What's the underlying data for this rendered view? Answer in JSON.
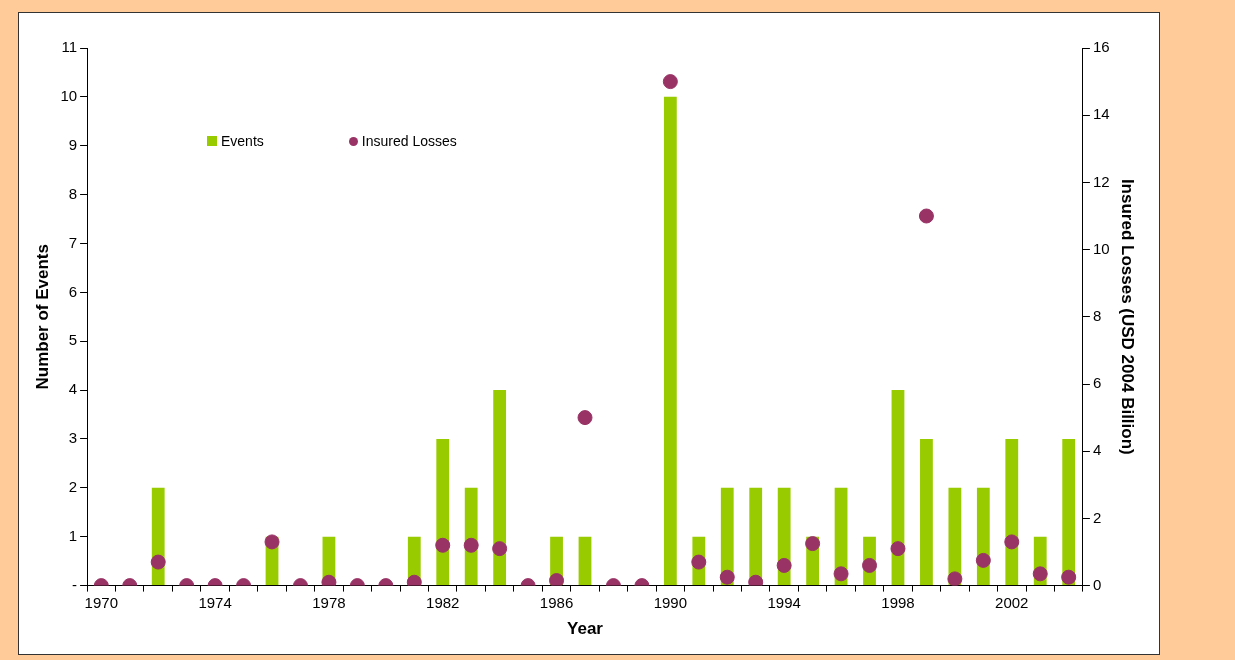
{
  "chart_data": {
    "type": "bar",
    "xlabel": "Year",
    "ylabel": "Number of Events",
    "y2label": "Insured Losses (USD 2004 Billion)",
    "categories": [
      "1970",
      null,
      null,
      null,
      "1974",
      null,
      null,
      null,
      "1978",
      null,
      null,
      null,
      "1982",
      null,
      null,
      null,
      "1986",
      null,
      null,
      null,
      "1990",
      null,
      null,
      null,
      "1994",
      null,
      null,
      null,
      "1998",
      null,
      null,
      null,
      "2002",
      null,
      null
    ],
    "series": [
      {
        "name": "Events",
        "color": "#99cc00",
        "values": [
          0,
          0,
          2,
          0,
          0,
          0,
          1,
          0,
          1,
          0,
          0,
          1,
          3,
          2,
          4,
          0,
          1,
          1,
          0,
          0,
          10,
          1,
          2,
          2,
          2,
          1,
          2,
          1,
          4,
          3,
          2,
          2,
          3,
          1,
          3
        ]
      },
      {
        "name": "Insured Losses",
        "type": "scatter",
        "axis": "y2",
        "color": "#993366",
        "marker": "circle",
        "values": [
          0,
          0,
          0.7,
          0,
          0,
          0,
          1.3,
          0,
          0.1,
          0,
          0,
          0.1,
          1.2,
          1.2,
          1.1,
          0,
          0.15,
          5.0,
          0,
          0,
          15.0,
          0.7,
          0.25,
          0.1,
          0.6,
          1.25,
          0.35,
          0.6,
          1.1,
          11.0,
          0.2,
          0.75,
          1.3,
          0.35,
          0.25
        ]
      }
    ],
    "ylim": [
      0,
      11
    ],
    "yticks": [
      {
        "value": 0,
        "label": "-"
      },
      1,
      2,
      3,
      4,
      5,
      6,
      7,
      8,
      9,
      10,
      11
    ],
    "y2lim": [
      0,
      16
    ],
    "y2ticks": [
      0,
      2,
      4,
      6,
      8,
      10,
      12,
      14,
      16
    ],
    "grid": false,
    "legend": "top left"
  }
}
